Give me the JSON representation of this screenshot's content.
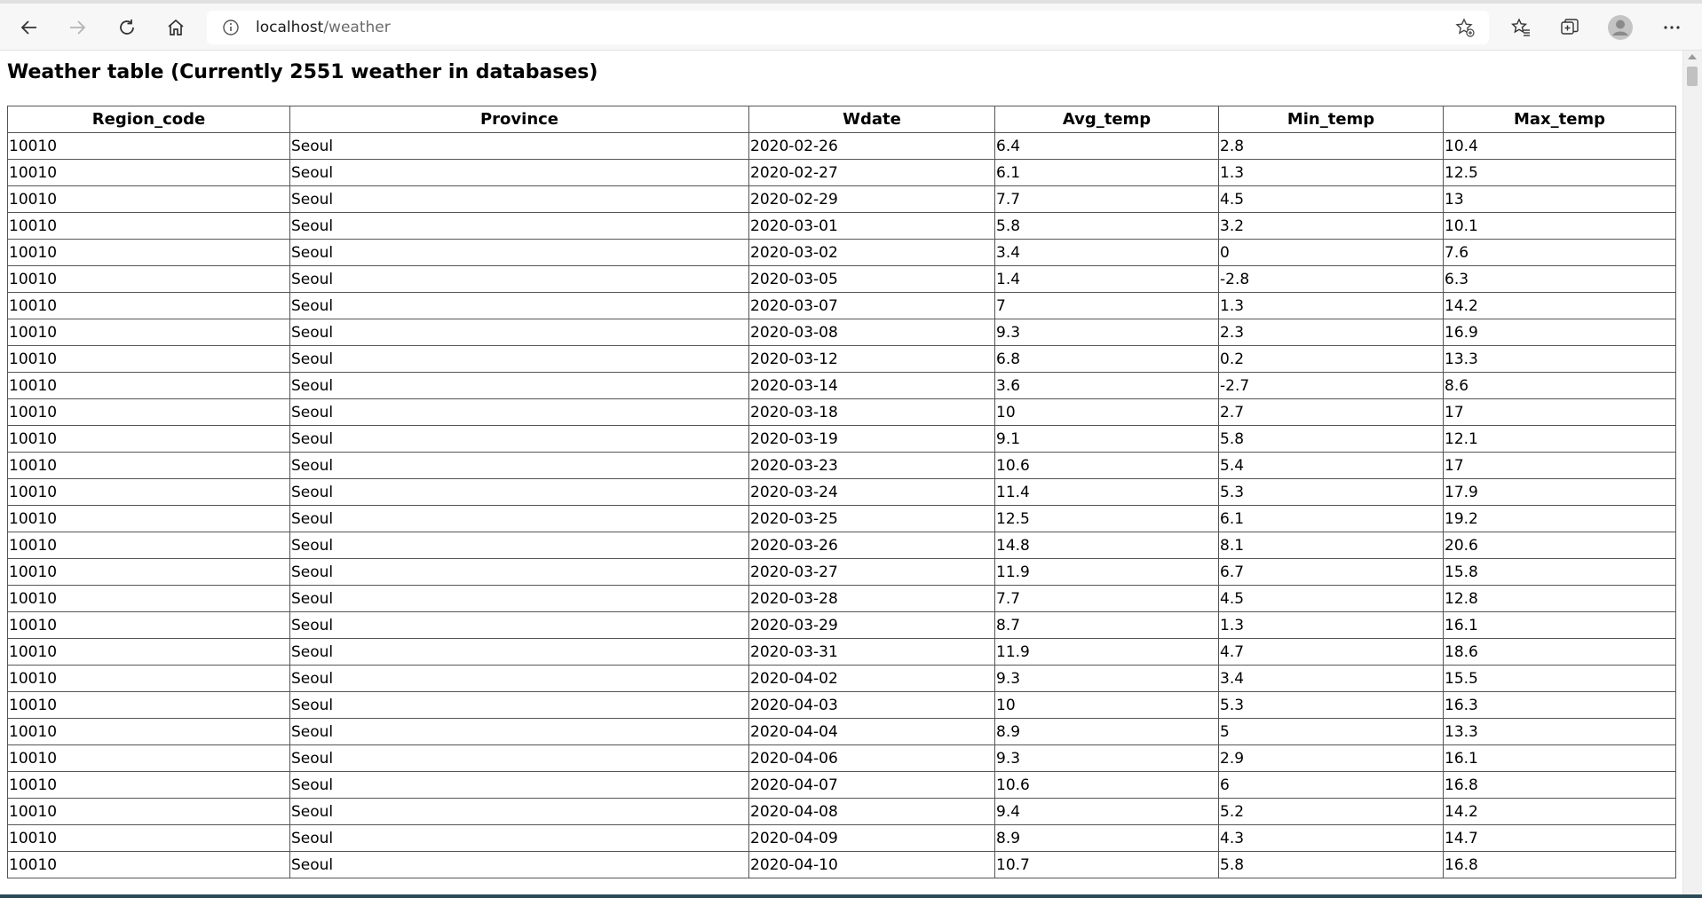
{
  "browser": {
    "url_host": "localhost",
    "url_path": "/weather"
  },
  "page": {
    "title": "Weather table (Currently 2551 weather in databases)"
  },
  "table": {
    "columns": [
      "Region_code",
      "Province",
      "Wdate",
      "Avg_temp",
      "Min_temp",
      "Max_temp"
    ],
    "rows": [
      [
        "10010",
        "Seoul",
        "2020-02-26",
        "6.4",
        "2.8",
        "10.4"
      ],
      [
        "10010",
        "Seoul",
        "2020-02-27",
        "6.1",
        "1.3",
        "12.5"
      ],
      [
        "10010",
        "Seoul",
        "2020-02-29",
        "7.7",
        "4.5",
        "13"
      ],
      [
        "10010",
        "Seoul",
        "2020-03-01",
        "5.8",
        "3.2",
        "10.1"
      ],
      [
        "10010",
        "Seoul",
        "2020-03-02",
        "3.4",
        "0",
        "7.6"
      ],
      [
        "10010",
        "Seoul",
        "2020-03-05",
        "1.4",
        "-2.8",
        "6.3"
      ],
      [
        "10010",
        "Seoul",
        "2020-03-07",
        "7",
        "1.3",
        "14.2"
      ],
      [
        "10010",
        "Seoul",
        "2020-03-08",
        "9.3",
        "2.3",
        "16.9"
      ],
      [
        "10010",
        "Seoul",
        "2020-03-12",
        "6.8",
        "0.2",
        "13.3"
      ],
      [
        "10010",
        "Seoul",
        "2020-03-14",
        "3.6",
        "-2.7",
        "8.6"
      ],
      [
        "10010",
        "Seoul",
        "2020-03-18",
        "10",
        "2.7",
        "17"
      ],
      [
        "10010",
        "Seoul",
        "2020-03-19",
        "9.1",
        "5.8",
        "12.1"
      ],
      [
        "10010",
        "Seoul",
        "2020-03-23",
        "10.6",
        "5.4",
        "17"
      ],
      [
        "10010",
        "Seoul",
        "2020-03-24",
        "11.4",
        "5.3",
        "17.9"
      ],
      [
        "10010",
        "Seoul",
        "2020-03-25",
        "12.5",
        "6.1",
        "19.2"
      ],
      [
        "10010",
        "Seoul",
        "2020-03-26",
        "14.8",
        "8.1",
        "20.6"
      ],
      [
        "10010",
        "Seoul",
        "2020-03-27",
        "11.9",
        "6.7",
        "15.8"
      ],
      [
        "10010",
        "Seoul",
        "2020-03-28",
        "7.7",
        "4.5",
        "12.8"
      ],
      [
        "10010",
        "Seoul",
        "2020-03-29",
        "8.7",
        "1.3",
        "16.1"
      ],
      [
        "10010",
        "Seoul",
        "2020-03-31",
        "11.9",
        "4.7",
        "18.6"
      ],
      [
        "10010",
        "Seoul",
        "2020-04-02",
        "9.3",
        "3.4",
        "15.5"
      ],
      [
        "10010",
        "Seoul",
        "2020-04-03",
        "10",
        "5.3",
        "16.3"
      ],
      [
        "10010",
        "Seoul",
        "2020-04-04",
        "8.9",
        "5",
        "13.3"
      ],
      [
        "10010",
        "Seoul",
        "2020-04-06",
        "9.3",
        "2.9",
        "16.1"
      ],
      [
        "10010",
        "Seoul",
        "2020-04-07",
        "10.6",
        "6",
        "16.8"
      ],
      [
        "10010",
        "Seoul",
        "2020-04-08",
        "9.4",
        "5.2",
        "14.2"
      ],
      [
        "10010",
        "Seoul",
        "2020-04-09",
        "8.9",
        "4.3",
        "14.7"
      ],
      [
        "10010",
        "Seoul",
        "2020-04-10",
        "10.7",
        "5.8",
        "16.8"
      ]
    ]
  }
}
